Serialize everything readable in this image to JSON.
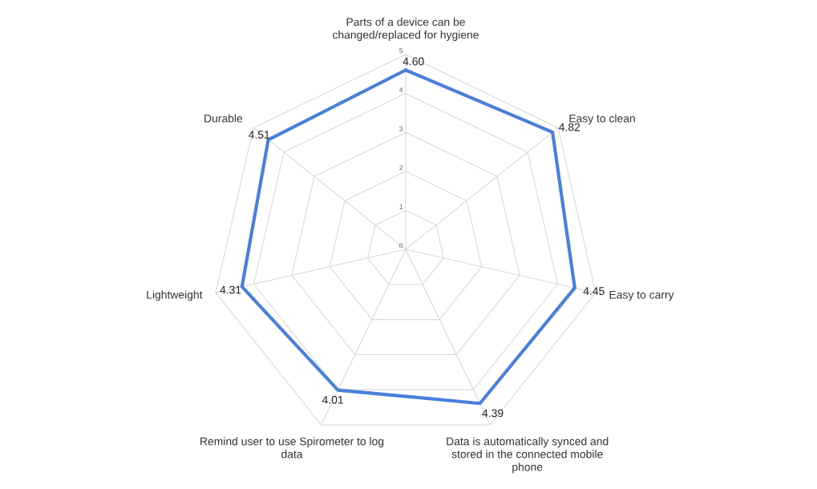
{
  "chart_data": {
    "type": "radar",
    "categories": [
      "Parts of a device can be\nchanged/replaced for hygiene",
      "Easy to clean",
      "Easy to carry",
      "Data is automatically synced and\nstored in the connected mobile\nphone",
      "Remind user to use Spirometer to log\ndata",
      "Lightweight",
      "Durable"
    ],
    "series": [
      {
        "color": "#4a7fdc",
        "values": [
          4.6,
          4.82,
          4.45,
          4.39,
          4.01,
          4.31,
          4.51
        ],
        "value_labels": [
          "4.60",
          "4.82",
          "4.45",
          "4.39",
          "4.01",
          "4.31",
          "4.51"
        ]
      }
    ],
    "ylim": [
      0,
      5
    ],
    "yticks": [
      0,
      1,
      2,
      3,
      4,
      5
    ],
    "grid": true,
    "marker": "none",
    "line_style": "solid"
  }
}
